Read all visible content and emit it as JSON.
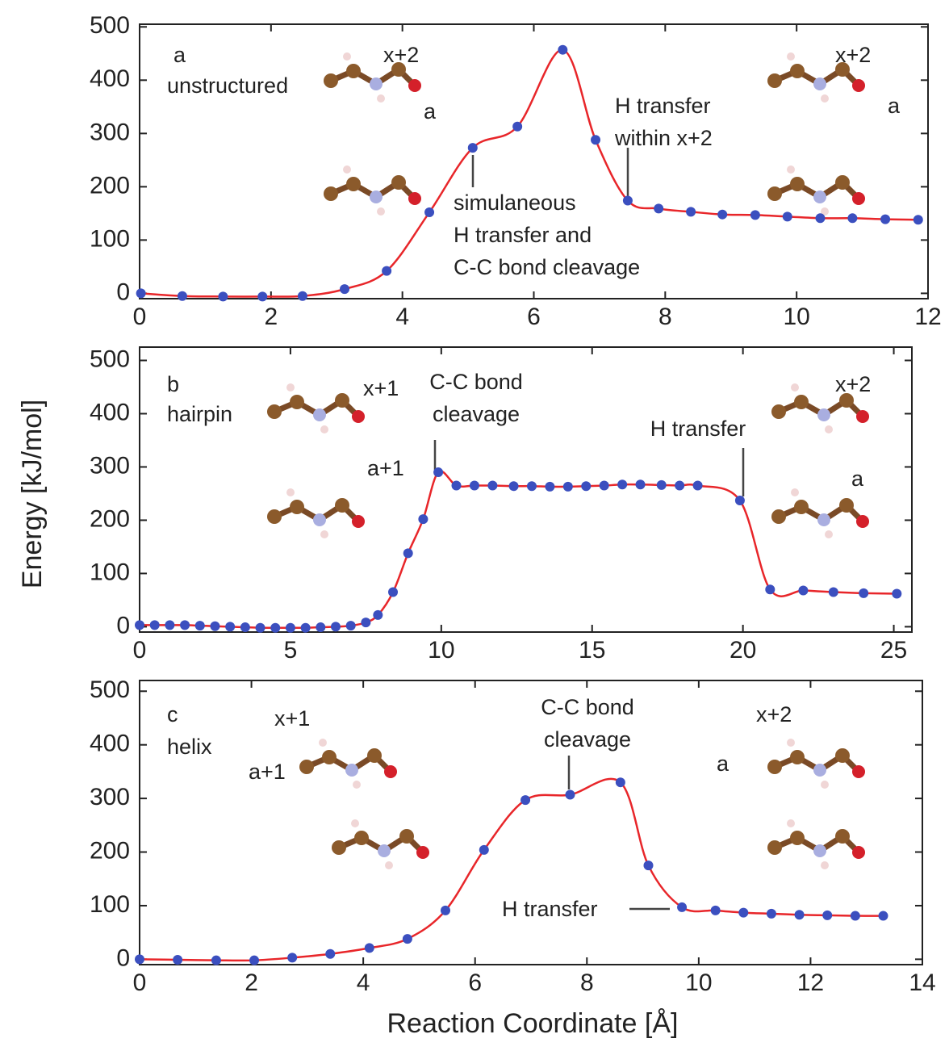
{
  "ylabel": "Energy [kJ/mol]",
  "xlabel": "Reaction Coordinate [Å]",
  "chart_data": [
    {
      "type": "line",
      "panel_label": "a",
      "subtitle": "unstructured",
      "xlim": [
        0,
        12
      ],
      "xticks": [
        0,
        2,
        4,
        6,
        8,
        10,
        12
      ],
      "ylim": [
        -10,
        505
      ],
      "yticks": [
        0,
        100,
        200,
        300,
        400,
        500
      ],
      "series": [
        {
          "color": "#e8262a",
          "marker_color": "#3b4fbf",
          "x": [
            0.02,
            0.65,
            1.27,
            1.87,
            2.48,
            3.12,
            3.76,
            4.41,
            5.07,
            5.75,
            6.44,
            6.94,
            7.43,
            7.9,
            8.39,
            8.87,
            9.37,
            9.86,
            10.36,
            10.85,
            11.35,
            11.85
          ],
          "values": [
            0,
            -5,
            -6,
            -6,
            -5,
            8,
            42,
            152,
            273,
            313,
            457,
            288,
            174,
            159,
            153,
            148,
            147,
            144,
            141,
            141,
            139,
            138
          ]
        }
      ],
      "annotations": [
        [
          "x+2"
        ],
        [
          "a"
        ],
        [
          "x+2"
        ],
        [
          "a"
        ],
        [
          "H transfer",
          "within x+2"
        ],
        [
          "simulaneous",
          "H transfer and",
          "C-C bond cleavage"
        ]
      ]
    },
    {
      "type": "line",
      "panel_label": "b",
      "subtitle": "hairpin",
      "xlim": [
        0,
        25.6
      ],
      "xticks": [
        0,
        5,
        10,
        15,
        20,
        25
      ],
      "ylim": [
        -10,
        525
      ],
      "yticks": [
        0,
        100,
        200,
        300,
        400,
        500
      ],
      "series": [
        {
          "color": "#e8262a",
          "marker_color": "#3b4fbf",
          "x": [
            0,
            0.5,
            1,
            1.5,
            2,
            2.5,
            3,
            3.5,
            4,
            4.5,
            5,
            5.5,
            6,
            6.5,
            7,
            7.5,
            7.9,
            8.4,
            8.9,
            9.4,
            9.9,
            10.5,
            11.1,
            11.7,
            12.4,
            13.0,
            13.6,
            14.2,
            14.8,
            15.4,
            16.0,
            16.6,
            17.3,
            17.9,
            18.5,
            19.9,
            20.9,
            22.0,
            23.0,
            24.0,
            25.1
          ],
          "values": [
            3,
            3,
            3,
            3,
            2,
            1,
            0,
            -1,
            -2,
            -2,
            -2,
            -2,
            -1,
            0,
            2,
            8,
            22,
            65,
            138,
            202,
            290,
            265,
            265,
            265,
            264,
            264,
            263,
            263,
            264,
            265,
            267,
            267,
            266,
            265,
            265,
            237,
            70,
            68,
            65,
            63,
            62
          ]
        }
      ],
      "annotations": [
        [
          "x+1"
        ],
        [
          "C-C bond",
          "cleavage"
        ],
        [
          "a+1"
        ],
        [
          "x+2"
        ],
        [
          "H transfer"
        ],
        [
          "a"
        ]
      ]
    },
    {
      "type": "line",
      "panel_label": "c",
      "subtitle": "helix",
      "xlim": [
        0,
        14
      ],
      "xticks": [
        0,
        2,
        4,
        6,
        8,
        10,
        12,
        14
      ],
      "ylim": [
        -10,
        520
      ],
      "yticks": [
        0,
        100,
        200,
        300,
        400,
        500
      ],
      "series": [
        {
          "color": "#e8262a",
          "marker_color": "#3b4fbf",
          "x": [
            0,
            0.68,
            1.37,
            2.05,
            2.73,
            3.41,
            4.11,
            4.79,
            5.47,
            6.16,
            6.9,
            7.7,
            8.6,
            9.1,
            9.7,
            10.3,
            10.8,
            11.3,
            11.8,
            12.3,
            12.8,
            13.3
          ],
          "values": [
            0,
            -1,
            -2,
            -2,
            3,
            10,
            21,
            38,
            91,
            204,
            297,
            307,
            330,
            175,
            97,
            91,
            87,
            85,
            83,
            82,
            81,
            81
          ]
        }
      ],
      "annotations": [
        [
          "x+1"
        ],
        [
          "a+1"
        ],
        [
          "C-C bond",
          "cleavage"
        ],
        [
          "x+2"
        ],
        [
          "a"
        ],
        [
          "H transfer"
        ]
      ]
    }
  ]
}
